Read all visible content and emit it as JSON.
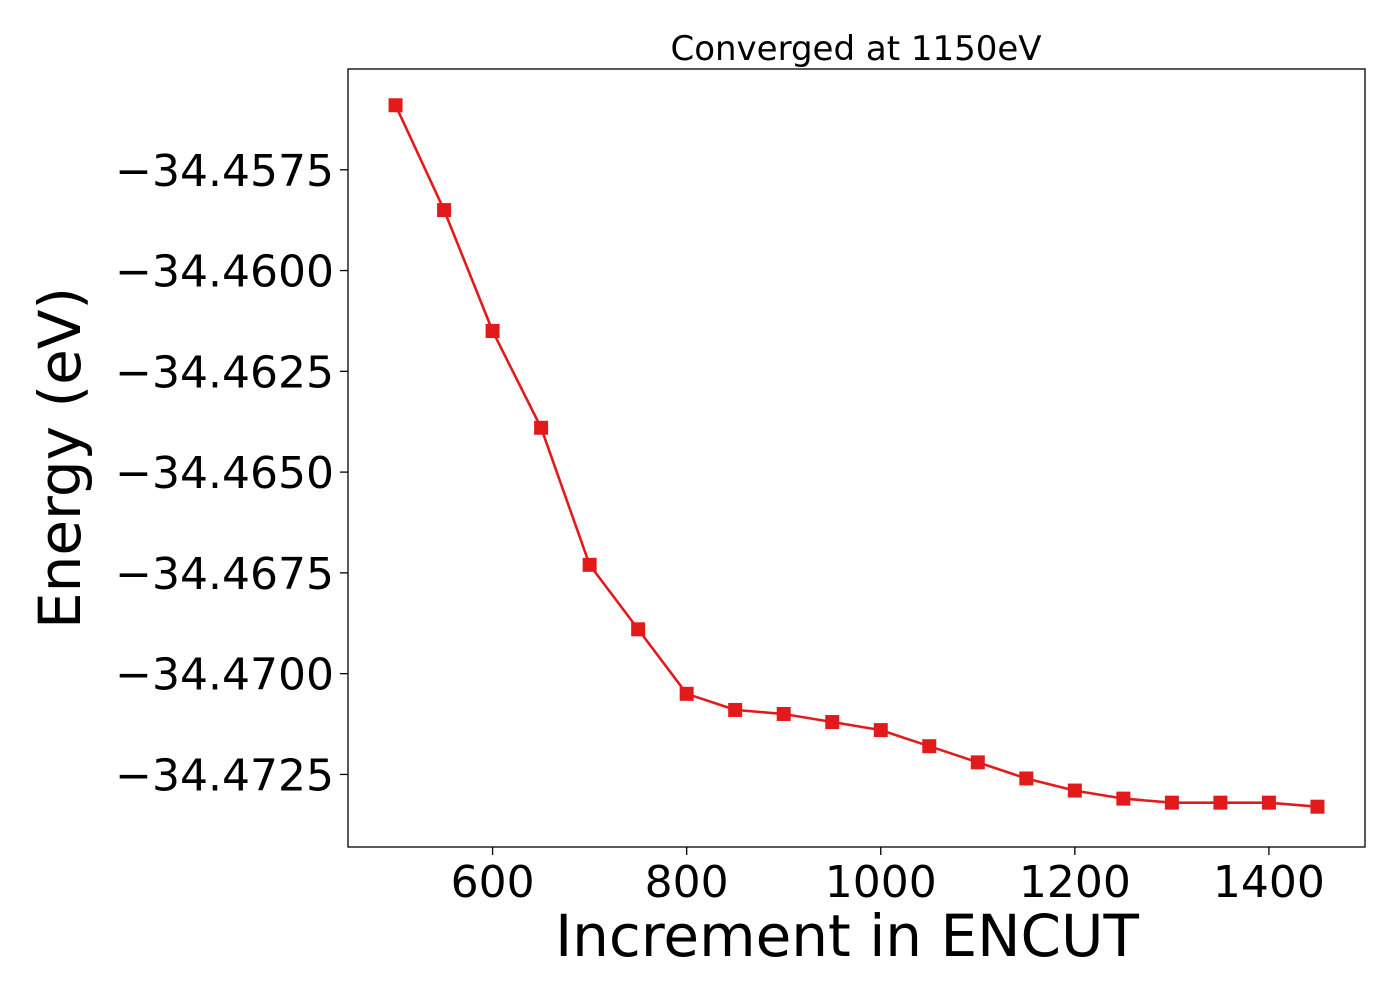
{
  "chart_data": {
    "type": "line",
    "title": "Converged at 1150eV",
    "xlabel": "Increment in ENCUT",
    "ylabel": "Energy (eV)",
    "x": [
      500,
      550,
      600,
      650,
      700,
      750,
      800,
      850,
      900,
      950,
      1000,
      1050,
      1100,
      1150,
      1200,
      1250,
      1300,
      1350,
      1400,
      1450
    ],
    "series": [
      {
        "values": [
          -34.4559,
          -34.4585,
          -34.4615,
          -34.4639,
          -34.4673,
          -34.4689,
          -34.4705,
          -34.4709,
          -34.471,
          -34.4712,
          -34.4714,
          -34.4718,
          -34.4722,
          -34.4726,
          -34.4729,
          -34.4731,
          -34.4732,
          -34.4732,
          -34.4732,
          -34.4733
        ],
        "color": "#e31a1c",
        "marker": "square"
      }
    ],
    "xlim": [
      451,
      1499
    ],
    "ylim": [
      -34.4743,
      -34.455
    ],
    "xticks": [
      600,
      800,
      1000,
      1200,
      1400
    ],
    "yticks": [
      -34.4575,
      -34.46,
      -34.4625,
      -34.465,
      -34.4675,
      -34.47,
      -34.4725
    ],
    "ytick_labels": [
      "−34.4575",
      "−34.4600",
      "−34.4625",
      "−34.4650",
      "−34.4675",
      "−34.4700",
      "−34.4725"
    ],
    "grid": false,
    "legend": "none"
  }
}
